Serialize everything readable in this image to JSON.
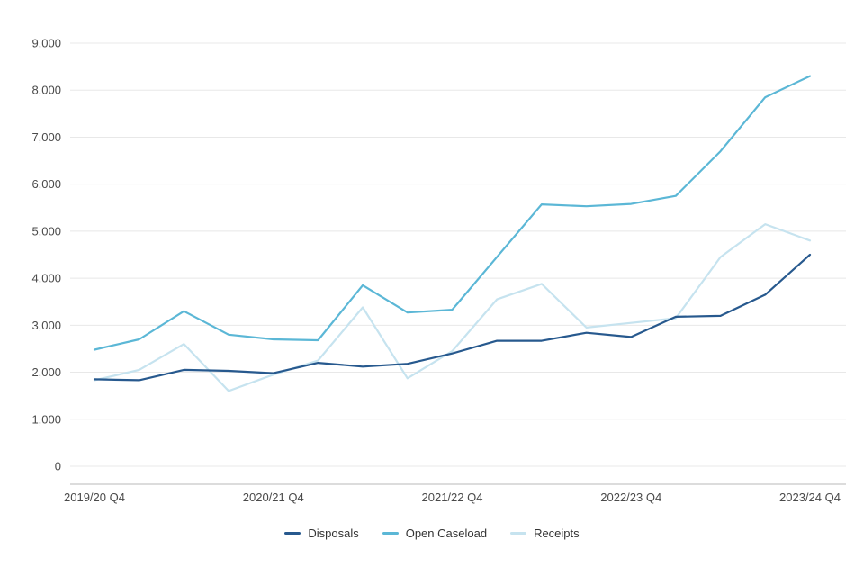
{
  "chart_data": {
    "type": "line",
    "title": "",
    "xlabel": "",
    "ylabel": "",
    "ylim": [
      0,
      9000
    ],
    "y_tick_step": 1000,
    "grid": true,
    "legend_position": "bottom",
    "n_points": 17,
    "x_tick_indices": [
      0,
      4,
      8,
      12,
      16
    ],
    "x_tick_labels": [
      "2019/20 Q4",
      "2020/21 Q4",
      "2021/22 Q4",
      "2022/23 Q4",
      "2023/24 Q4"
    ],
    "series": [
      {
        "name": "Disposals",
        "color": "#27598e",
        "values": [
          1850,
          1830,
          2050,
          2030,
          1980,
          2200,
          2120,
          2180,
          2400,
          2670,
          2670,
          2840,
          2750,
          3180,
          3200,
          3650,
          4500
        ]
      },
      {
        "name": "Open Caseload",
        "color": "#5bb7d6",
        "values": [
          2480,
          2700,
          3300,
          2800,
          2700,
          2680,
          3850,
          3270,
          3330,
          4450,
          5570,
          5530,
          5580,
          5750,
          6700,
          7850,
          8300
        ]
      },
      {
        "name": "Receipts",
        "color": "#c6e3ef",
        "values": [
          1830,
          2050,
          2600,
          1600,
          1950,
          2250,
          3380,
          1870,
          2450,
          3550,
          3880,
          2950,
          3050,
          3150,
          4450,
          5150,
          4800
        ]
      }
    ],
    "colors": {
      "gridline": "#e8e8e8",
      "axis_line": "#b9b9b9",
      "axis_text": "#4a4a4a",
      "background": "#ffffff"
    }
  }
}
